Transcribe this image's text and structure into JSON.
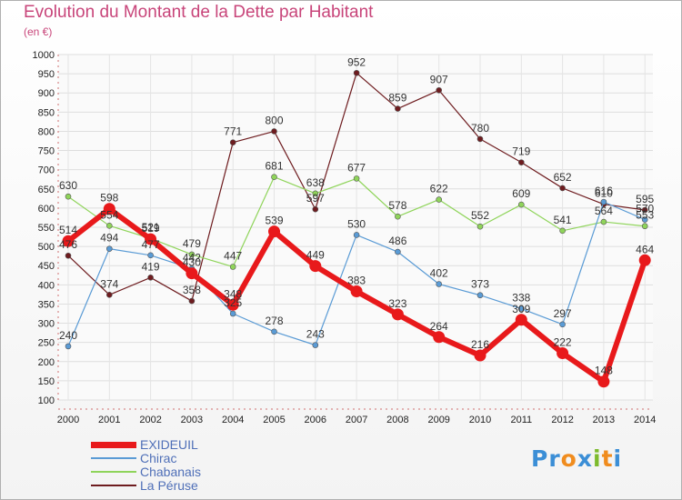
{
  "title": "Evolution du Montant de la Dette par Habitant",
  "subtitle": "(en €)",
  "logo": {
    "letters": [
      "P",
      "r",
      "o",
      "x",
      "i",
      "t",
      "i"
    ],
    "colors": [
      "#3b8ed6",
      "#3b8ed6",
      "#f08c1e",
      "#3b8ed6",
      "#7dbb2e",
      "#f08c1e",
      "#3b8ed6"
    ]
  },
  "chart_data": {
    "type": "line",
    "x": [
      "2000",
      "2001",
      "2002",
      "2003",
      "2004",
      "2005",
      "2006",
      "2007",
      "2008",
      "2009",
      "2010",
      "2011",
      "2012",
      "2013",
      "2014"
    ],
    "ylim": [
      100,
      1000
    ],
    "yticks": [
      "100",
      "150",
      "200",
      "250",
      "300",
      "350",
      "400",
      "450",
      "500",
      "550",
      "600",
      "650",
      "700",
      "750",
      "800",
      "850",
      "900",
      "950",
      "1000"
    ],
    "grid": true,
    "legend": "bottom-left",
    "series": [
      {
        "name": "La Péruse",
        "color": "#6e1c1f",
        "width": 1.2,
        "marker": 3,
        "values": [
          476,
          374,
          419,
          358,
          771,
          800,
          597,
          952,
          859,
          907,
          780,
          719,
          652,
          610,
          595
        ],
        "labels": [
          "476",
          "374",
          "419",
          "358",
          "771",
          "800",
          "597",
          "952",
          "859",
          "907",
          "780",
          "719",
          "652",
          "610",
          "595"
        ]
      },
      {
        "name": "Chabanais",
        "color": "#8fd45a",
        "width": 1.2,
        "marker": 3,
        "values": [
          630,
          554,
          521,
          479,
          447,
          681,
          638,
          677,
          578,
          622,
          552,
          609,
          541,
          564,
          553
        ],
        "labels": [
          "630",
          "554",
          "521",
          "479",
          "447",
          "681",
          "638",
          "677",
          "578",
          "622",
          "552",
          "609",
          "541",
          "564",
          "553"
        ]
      },
      {
        "name": "Chirac",
        "color": "#5a9bd5",
        "width": 1.2,
        "marker": 3,
        "values": [
          240,
          494,
          477,
          442,
          325,
          278,
          243,
          530,
          486,
          402,
          373,
          338,
          297,
          616,
          570
        ],
        "labels": [
          "240",
          "494",
          "477",
          "442",
          "325",
          "278",
          "243",
          "530",
          "486",
          "402",
          "373",
          "338",
          "297",
          "616",
          "570"
        ]
      },
      {
        "name": "EXIDEUIL",
        "color": "#e8191b",
        "width": 6,
        "marker": 6.5,
        "values": [
          514,
          598,
          519,
          430,
          348,
          539,
          449,
          383,
          323,
          264,
          216,
          309,
          222,
          148,
          464
        ],
        "labels": [
          "514",
          "598",
          "519",
          "430",
          "348",
          "539",
          "449",
          "383",
          "323",
          "264",
          "216",
          "309",
          "222",
          "148",
          "464"
        ]
      }
    ],
    "legend_order": [
      "EXIDEUIL",
      "Chirac",
      "Chabanais",
      "La Péruse"
    ]
  }
}
